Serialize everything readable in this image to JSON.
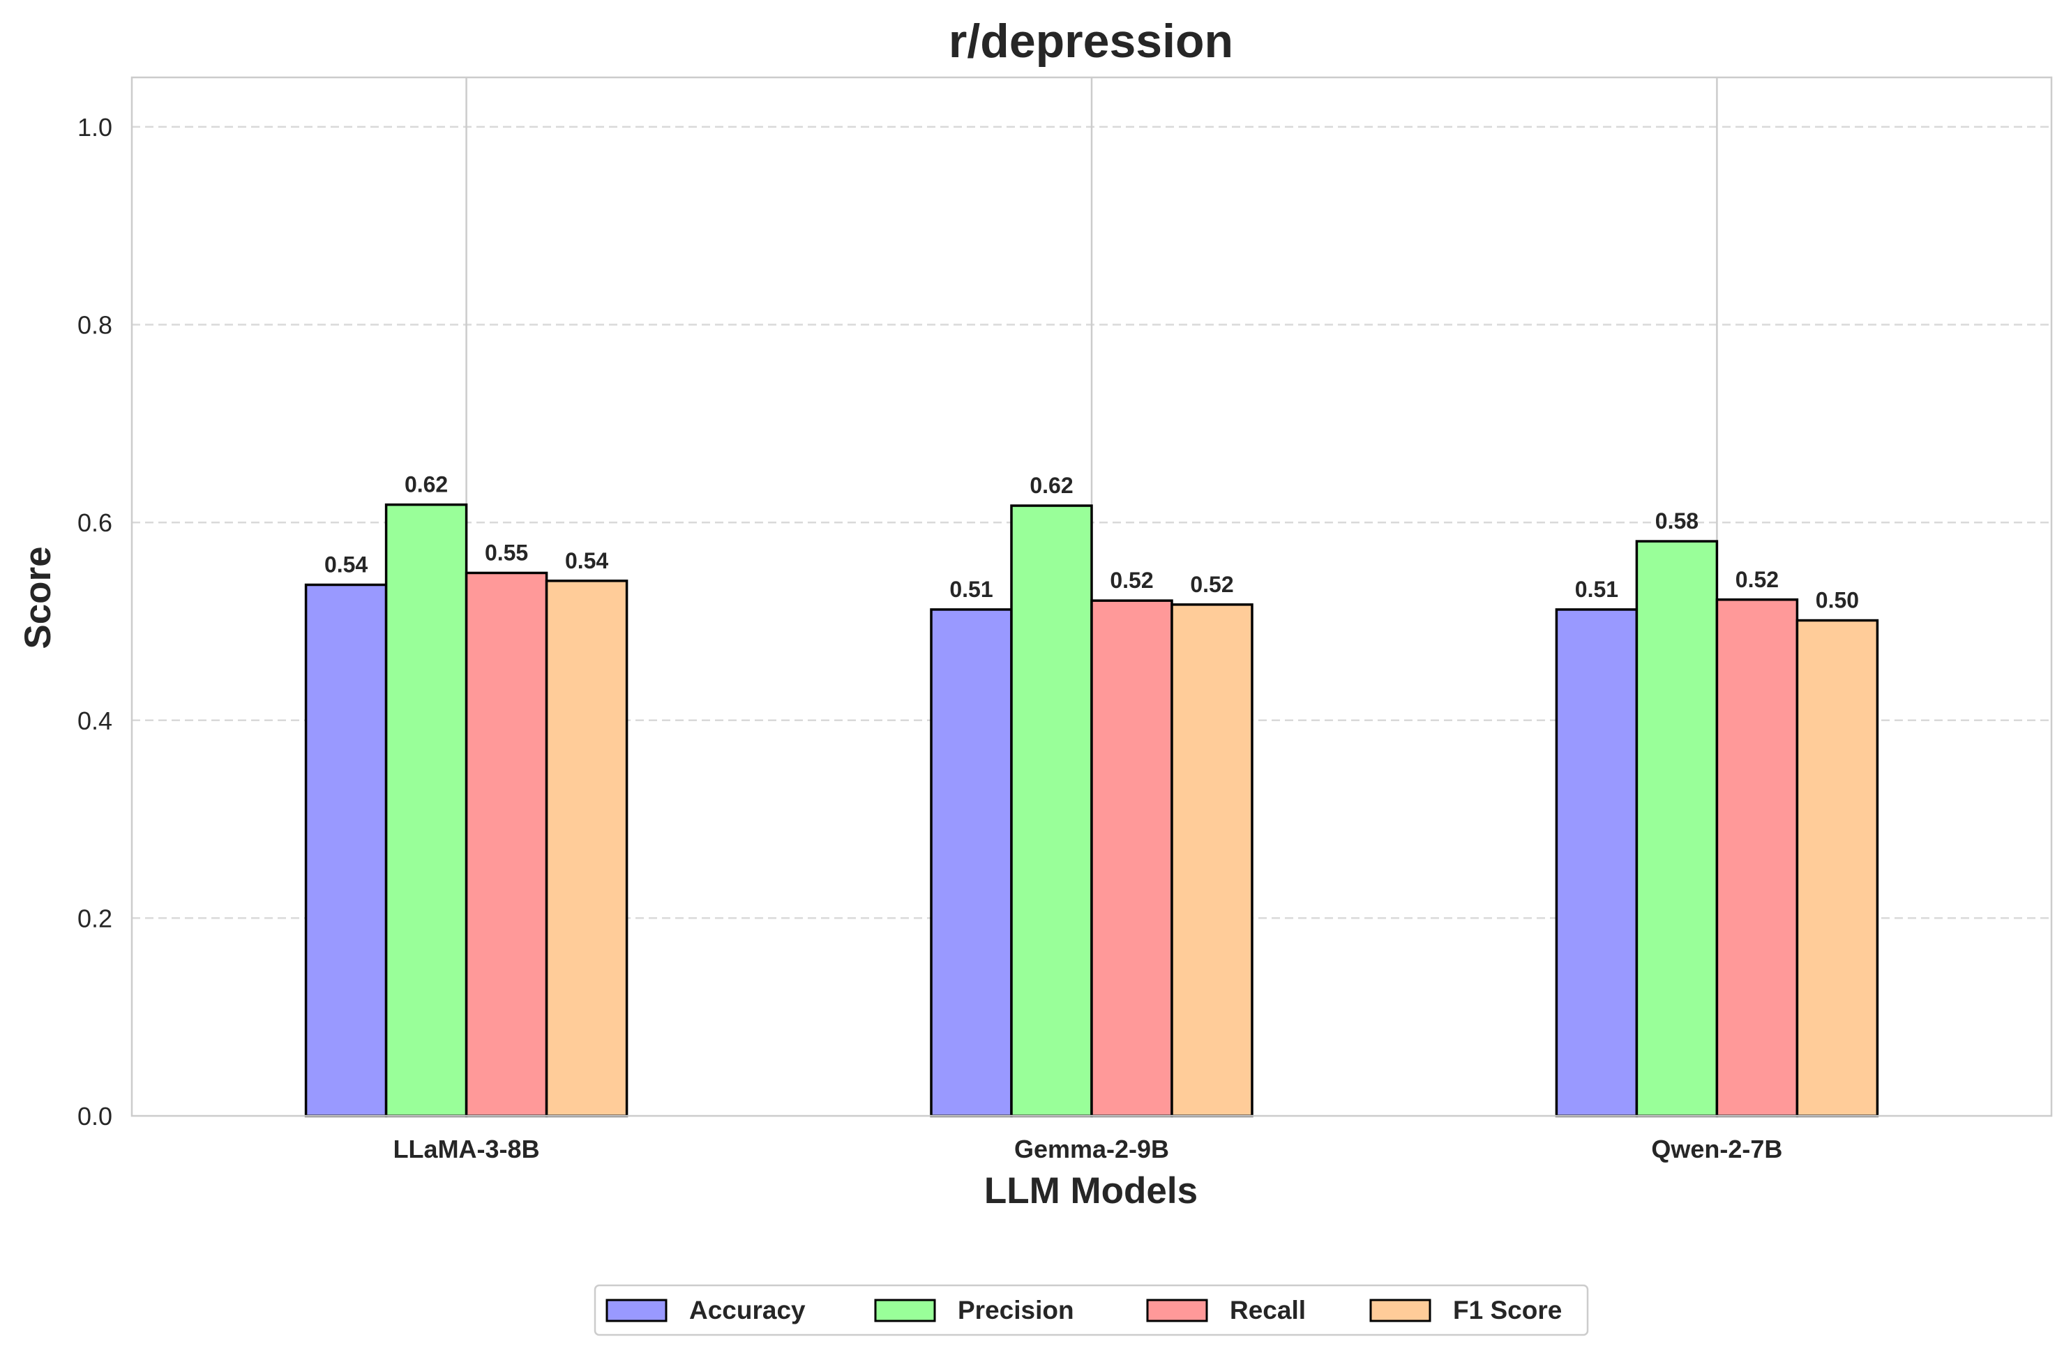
{
  "chart_data": {
    "type": "bar",
    "title": "r/depression",
    "xlabel": "LLM Models",
    "ylabel": "Score",
    "ylim": [
      0,
      1.05
    ],
    "yticks": [
      0.0,
      0.2,
      0.4,
      0.6,
      0.8,
      1.0
    ],
    "ytick_labels": [
      "0.0",
      "0.2",
      "0.4",
      "0.6",
      "0.8",
      "1.0"
    ],
    "categories": [
      "LLaMA-3-8B",
      "Gemma-2-9B",
      "Qwen-2-7B"
    ],
    "series": [
      {
        "name": "Accuracy",
        "color": "#9999ff",
        "values": [
          0.537,
          0.512,
          0.512
        ],
        "labels": [
          "0.54",
          "0.51",
          "0.51"
        ]
      },
      {
        "name": "Precision",
        "color": "#99ff99",
        "values": [
          0.618,
          0.617,
          0.581
        ],
        "labels": [
          "0.62",
          "0.62",
          "0.58"
        ]
      },
      {
        "name": "Recall",
        "color": "#ff9999",
        "values": [
          0.549,
          0.521,
          0.522
        ],
        "labels": [
          "0.55",
          "0.52",
          "0.52"
        ]
      },
      {
        "name": "F1 Score",
        "color": "#ffcc99",
        "values": [
          0.541,
          0.517,
          0.501
        ],
        "labels": [
          "0.54",
          "0.52",
          "0.50"
        ]
      }
    ],
    "grid": {
      "y": "dashed",
      "x": "solid at category centers"
    },
    "legend_position": "bottom-center"
  }
}
